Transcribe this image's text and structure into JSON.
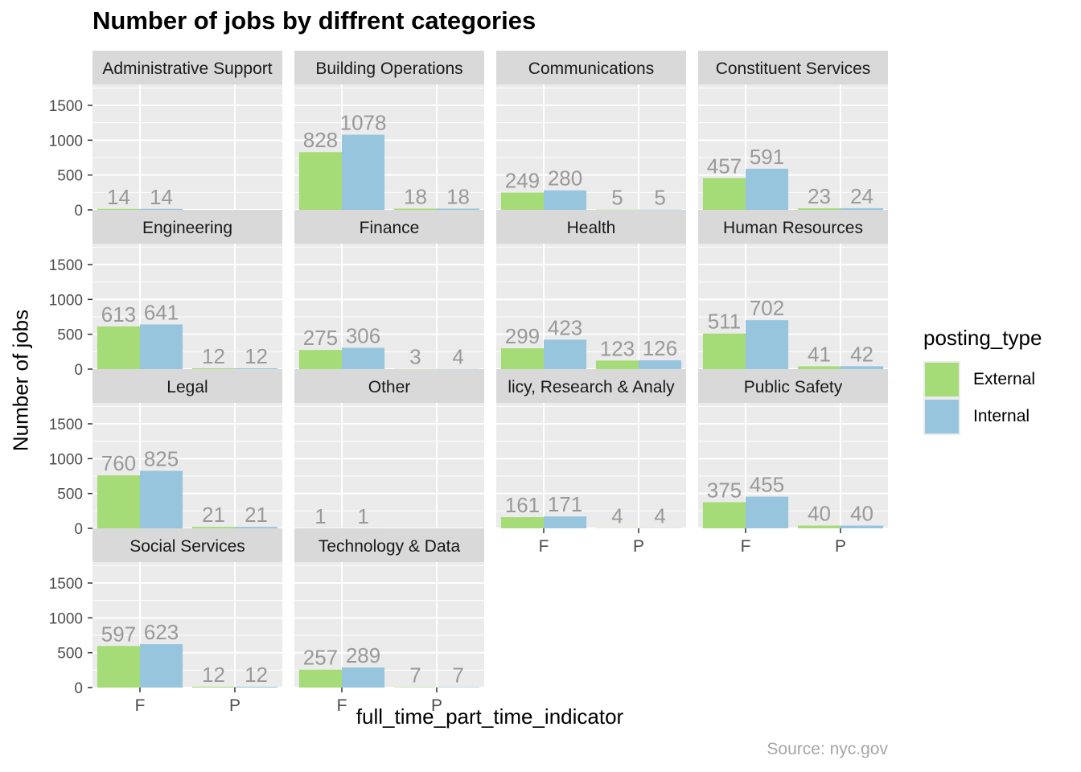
{
  "chart_data": {
    "type": "bar",
    "title": "Number of jobs by diffrent categories",
    "xlabel": "full_time_part_time_indicator",
    "ylabel": "Number of jobs",
    "caption": "Source: nyc.gov",
    "legend": {
      "title": "posting_type",
      "position": "right",
      "entries": [
        {
          "name": "External",
          "color": "#a6dc78"
        },
        {
          "name": "Internal",
          "color": "#98c5de"
        }
      ]
    },
    "facet_by": "category",
    "x_categories": [
      "F",
      "P"
    ],
    "series_order": [
      "External",
      "Internal"
    ],
    "ylim": [
      0,
      1800
    ],
    "yticks": [
      0,
      500,
      1000,
      1500
    ],
    "grid": true,
    "panels": [
      {
        "strip": "Administrative Support",
        "bars": [
          {
            "x": "F",
            "series": "External",
            "value": 14
          },
          {
            "x": "F",
            "series": "Internal",
            "value": 14
          }
        ]
      },
      {
        "strip": "Building Operations",
        "bars": [
          {
            "x": "F",
            "series": "External",
            "value": 828
          },
          {
            "x": "F",
            "series": "Internal",
            "value": 1078
          },
          {
            "x": "P",
            "series": "External",
            "value": 18
          },
          {
            "x": "P",
            "series": "Internal",
            "value": 18
          }
        ]
      },
      {
        "strip": "Communications",
        "bars": [
          {
            "x": "F",
            "series": "External",
            "value": 249
          },
          {
            "x": "F",
            "series": "Internal",
            "value": 280
          },
          {
            "x": "P",
            "series": "External",
            "value": 5
          },
          {
            "x": "P",
            "series": "Internal",
            "value": 5
          }
        ]
      },
      {
        "strip": "Constituent Services",
        "bars": [
          {
            "x": "F",
            "series": "External",
            "value": 457
          },
          {
            "x": "F",
            "series": "Internal",
            "value": 591
          },
          {
            "x": "P",
            "series": "External",
            "value": 23
          },
          {
            "x": "P",
            "series": "Internal",
            "value": 24
          }
        ]
      },
      {
        "strip": "Engineering",
        "bars": [
          {
            "x": "F",
            "series": "External",
            "value": 613
          },
          {
            "x": "F",
            "series": "Internal",
            "value": 641
          },
          {
            "x": "P",
            "series": "External",
            "value": 12
          },
          {
            "x": "P",
            "series": "Internal",
            "value": 12
          }
        ]
      },
      {
        "strip": "Finance",
        "bars": [
          {
            "x": "F",
            "series": "External",
            "value": 275
          },
          {
            "x": "F",
            "series": "Internal",
            "value": 306
          },
          {
            "x": "P",
            "series": "External",
            "value": 3
          },
          {
            "x": "P",
            "series": "Internal",
            "value": 4
          }
        ]
      },
      {
        "strip": "Health",
        "bars": [
          {
            "x": "F",
            "series": "External",
            "value": 299
          },
          {
            "x": "F",
            "series": "Internal",
            "value": 423
          },
          {
            "x": "P",
            "series": "External",
            "value": 123
          },
          {
            "x": "P",
            "series": "Internal",
            "value": 126
          }
        ]
      },
      {
        "strip": "Human Resources",
        "bars": [
          {
            "x": "F",
            "series": "External",
            "value": 511
          },
          {
            "x": "F",
            "series": "Internal",
            "value": 702
          },
          {
            "x": "P",
            "series": "External",
            "value": 41
          },
          {
            "x": "P",
            "series": "Internal",
            "value": 42
          }
        ]
      },
      {
        "strip": "Legal",
        "bars": [
          {
            "x": "F",
            "series": "External",
            "value": 760
          },
          {
            "x": "F",
            "series": "Internal",
            "value": 825
          },
          {
            "x": "P",
            "series": "External",
            "value": 21
          },
          {
            "x": "P",
            "series": "Internal",
            "value": 21
          }
        ]
      },
      {
        "strip": "Other",
        "bars": [
          {
            "x": "F",
            "series": "External",
            "value": 1
          },
          {
            "x": "F",
            "series": "Internal",
            "value": 1
          }
        ]
      },
      {
        "strip": "licy, Research & Analy",
        "bars": [
          {
            "x": "F",
            "series": "External",
            "value": 161
          },
          {
            "x": "F",
            "series": "Internal",
            "value": 171
          },
          {
            "x": "P",
            "series": "External",
            "value": 4
          },
          {
            "x": "P",
            "series": "Internal",
            "value": 4
          }
        ]
      },
      {
        "strip": "Public Safety",
        "bars": [
          {
            "x": "F",
            "series": "External",
            "value": 375
          },
          {
            "x": "F",
            "series": "Internal",
            "value": 455
          },
          {
            "x": "P",
            "series": "External",
            "value": 40
          },
          {
            "x": "P",
            "series": "Internal",
            "value": 40
          }
        ]
      },
      {
        "strip": "Social Services",
        "bars": [
          {
            "x": "F",
            "series": "External",
            "value": 597
          },
          {
            "x": "F",
            "series": "Internal",
            "value": 623
          },
          {
            "x": "P",
            "series": "External",
            "value": 12
          },
          {
            "x": "P",
            "series": "Internal",
            "value": 12
          }
        ]
      },
      {
        "strip": "Technology & Data",
        "bars": [
          {
            "x": "F",
            "series": "External",
            "value": 257
          },
          {
            "x": "F",
            "series": "Internal",
            "value": 289
          },
          {
            "x": "P",
            "series": "External",
            "value": 7
          },
          {
            "x": "P",
            "series": "Internal",
            "value": 7
          }
        ]
      }
    ]
  }
}
